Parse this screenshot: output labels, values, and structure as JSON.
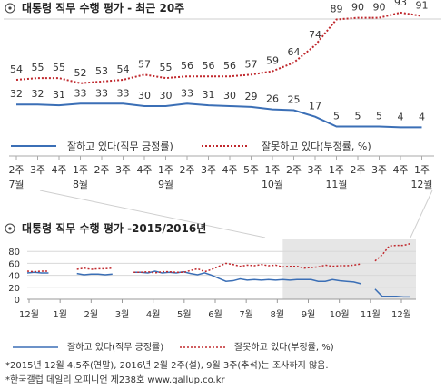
{
  "colors": {
    "approve": "#3b6fb6",
    "disapprove": "#c0282d",
    "shade": "#e6e6e6",
    "grid": "#d8d8d8"
  },
  "chart_data": [
    {
      "type": "line",
      "title": "대통령 직무 수행 평가 - 최근 20주",
      "icon": "copyright-circle-icon",
      "x": [
        {
          "week": "2주",
          "month": "7월"
        },
        {
          "week": "3주",
          "month": ""
        },
        {
          "week": "4주",
          "month": ""
        },
        {
          "week": "1주",
          "month": "8월"
        },
        {
          "week": "2주",
          "month": ""
        },
        {
          "week": "3주",
          "month": ""
        },
        {
          "week": "4주",
          "month": ""
        },
        {
          "week": "1주",
          "month": "9월"
        },
        {
          "week": "2주",
          "month": ""
        },
        {
          "week": "3주",
          "month": ""
        },
        {
          "week": "4주",
          "month": ""
        },
        {
          "week": "5주",
          "month": ""
        },
        {
          "week": "1주",
          "month": "10월"
        },
        {
          "week": "2주",
          "month": ""
        },
        {
          "week": "3주",
          "month": ""
        },
        {
          "week": "1주",
          "month": "11월"
        },
        {
          "week": "2주",
          "month": ""
        },
        {
          "week": "3주",
          "month": ""
        },
        {
          "week": "4주",
          "month": ""
        },
        {
          "week": "1주",
          "month": "12월"
        }
      ],
      "series": [
        {
          "name": "잘하고 있다(직무 긍정률)",
          "key": "approve",
          "values": [
            32,
            32,
            31,
            33,
            33,
            33,
            30,
            30,
            33,
            31,
            30,
            29,
            26,
            25,
            17,
            5,
            5,
            5,
            4,
            4
          ]
        },
        {
          "name": "잘못하고 있다(부정률, %)",
          "key": "disapprove",
          "values": [
            54,
            55,
            55,
            52,
            53,
            54,
            57,
            55,
            56,
            56,
            56,
            57,
            59,
            64,
            74,
            89,
            90,
            90,
            93,
            91
          ]
        }
      ],
      "ylim": [
        0,
        100
      ]
    },
    {
      "type": "line",
      "title": "대통령 직무 수행 평가 -2015/2016년",
      "icon": "copyright-circle-icon",
      "yticks": [
        0,
        20,
        40,
        60,
        80
      ],
      "ylim": [
        0,
        100
      ],
      "xticks": [
        "12월",
        "1월",
        "2월",
        "3월",
        "4월",
        "5월",
        "6월",
        "7월",
        "8월",
        "9월",
        "10월",
        "11월",
        "12월"
      ],
      "x_range": [
        0,
        54
      ],
      "highlight": [
        36,
        54
      ],
      "series": [
        {
          "name": "잘하고 있다(직무 긍정률)",
          "key": "approve",
          "segments": [
            [
              [
                0,
                44
              ],
              [
                1,
                45
              ],
              [
                2,
                44
              ],
              [
                3,
                44
              ]
            ],
            [
              [
                7,
                43
              ],
              [
                8,
                41
              ],
              [
                9,
                42
              ],
              [
                10,
                42
              ],
              [
                11,
                41
              ],
              [
                12,
                42
              ]
            ],
            [
              [
                15,
                45
              ],
              [
                16,
                45
              ],
              [
                17,
                44
              ],
              [
                18,
                47
              ],
              [
                19,
                44
              ],
              [
                20,
                45
              ],
              [
                21,
                44
              ],
              [
                22,
                46
              ],
              [
                23,
                43
              ],
              [
                24,
                41
              ],
              [
                25,
                44
              ],
              [
                26,
                40
              ],
              [
                27,
                35
              ],
              [
                28,
                30
              ],
              [
                29,
                31
              ],
              [
                30,
                34
              ],
              [
                31,
                32
              ],
              [
                32,
                33
              ],
              [
                33,
                32
              ],
              [
                34,
                33
              ],
              [
                35,
                32
              ],
              [
                36,
                33
              ],
              [
                37,
                32
              ],
              [
                38,
                33
              ],
              [
                39,
                33
              ],
              [
                40,
                33
              ],
              [
                41,
                30
              ],
              [
                42,
                30
              ],
              [
                43,
                33
              ],
              [
                44,
                31
              ],
              [
                45,
                30
              ],
              [
                46,
                29
              ],
              [
                47,
                26
              ]
            ],
            [
              [
                49,
                17
              ],
              [
                50,
                5
              ],
              [
                51,
                5
              ],
              [
                52,
                5
              ],
              [
                53,
                4
              ],
              [
                54,
                4
              ]
            ]
          ]
        },
        {
          "name": "잘못하고 있다(부정률, %)",
          "key": "disapprove",
          "segments": [
            [
              [
                0,
                47
              ],
              [
                1,
                46
              ],
              [
                2,
                47
              ],
              [
                3,
                47
              ]
            ],
            [
              [
                7,
                50
              ],
              [
                8,
                52
              ],
              [
                9,
                50
              ],
              [
                10,
                51
              ],
              [
                11,
                51
              ],
              [
                12,
                52
              ]
            ],
            [
              [
                15,
                45
              ],
              [
                16,
                45
              ],
              [
                17,
                46
              ],
              [
                18,
                44
              ],
              [
                19,
                46
              ],
              [
                20,
                46
              ],
              [
                21,
                45
              ],
              [
                22,
                45
              ],
              [
                23,
                48
              ],
              [
                24,
                51
              ],
              [
                25,
                46
              ],
              [
                26,
                50
              ],
              [
                27,
                55
              ],
              [
                28,
                60
              ],
              [
                29,
                58
              ],
              [
                30,
                55
              ],
              [
                31,
                57
              ],
              [
                32,
                56
              ],
              [
                33,
                58
              ],
              [
                34,
                56
              ],
              [
                35,
                57
              ],
              [
                36,
                54
              ],
              [
                37,
                55
              ],
              [
                38,
                55
              ],
              [
                39,
                52
              ],
              [
                40,
                53
              ],
              [
                41,
                54
              ],
              [
                42,
                57
              ],
              [
                43,
                55
              ],
              [
                44,
                56
              ],
              [
                45,
                56
              ],
              [
                46,
                57
              ],
              [
                47,
                59
              ]
            ],
            [
              [
                49,
                64
              ],
              [
                50,
                74
              ],
              [
                51,
                89
              ],
              [
                52,
                90
              ],
              [
                53,
                90
              ],
              [
                54,
                93
              ]
            ]
          ]
        }
      ]
    }
  ],
  "legend": {
    "approve": "잘하고 있다(직무 긍정률)",
    "disapprove": "잘못하고 있다(부정률, %)"
  },
  "notes": [
    "*2015년 12월 4,5주(연말), 2016년 2월 2주(설), 9월 3주(추석)는 조사하지 않음.",
    "*한국갤럽 데일리 오피니언 제238호 www.gallup.co.kr"
  ]
}
